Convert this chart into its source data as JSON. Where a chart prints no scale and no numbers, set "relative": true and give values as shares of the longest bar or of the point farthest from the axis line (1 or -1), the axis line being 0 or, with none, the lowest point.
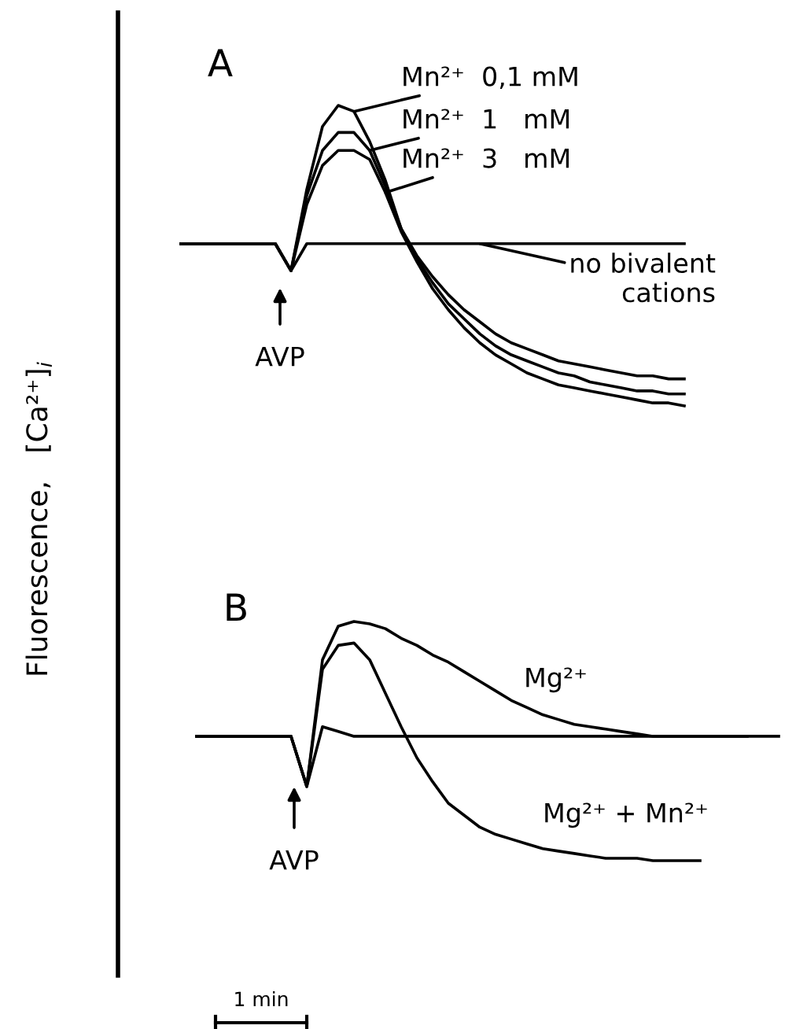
{
  "chart_data": [
    {
      "type": "line",
      "title": "A",
      "ylabel": "Fluorescence,   [Ca²⁺]$_{i}$",
      "relative": true,
      "tick_labels": false,
      "categories": [
        null,
        null,
        null,
        null,
        null,
        null,
        null,
        null,
        null,
        null,
        null,
        null,
        null,
        null,
        null,
        null,
        null,
        null,
        null,
        null,
        null,
        null,
        null,
        null,
        null,
        null,
        null,
        null,
        null,
        null,
        null,
        null,
        null
      ],
      "series": [
        {
          "name": "Mn²⁺  0,1 mM",
          "color": "#000000",
          "values": [
            0.54,
            0.54,
            0.54,
            0.54,
            0.54,
            0.54,
            0.54,
            0.45,
            0.72,
            0.93,
            1.0,
            0.98,
            0.88,
            0.75,
            0.59,
            0.5,
            0.43,
            0.37,
            0.32,
            0.28,
            0.24,
            0.21,
            0.19,
            0.17,
            0.15,
            0.14,
            0.13,
            0.12,
            0.11,
            0.1,
            0.1,
            0.09,
            0.09
          ]
        },
        {
          "name": "Mn²⁺  1   mM",
          "color": "#000000",
          "values": [
            0.54,
            0.54,
            0.54,
            0.54,
            0.54,
            0.54,
            0.54,
            0.45,
            0.7,
            0.85,
            0.91,
            0.91,
            0.85,
            0.73,
            0.59,
            0.49,
            0.41,
            0.34,
            0.29,
            0.24,
            0.2,
            0.17,
            0.15,
            0.13,
            0.11,
            0.1,
            0.08,
            0.07,
            0.06,
            0.05,
            0.05,
            0.04,
            0.04
          ]
        },
        {
          "name": "Mn²⁺  3   mM",
          "color": "#000000",
          "values": [
            0.54,
            0.54,
            0.54,
            0.54,
            0.54,
            0.54,
            0.54,
            0.45,
            0.67,
            0.8,
            0.85,
            0.85,
            0.82,
            0.71,
            0.58,
            0.48,
            0.39,
            0.32,
            0.26,
            0.21,
            0.17,
            0.14,
            0.11,
            0.09,
            0.07,
            0.06,
            0.05,
            0.04,
            0.03,
            0.02,
            0.01,
            0.01,
            0.0
          ]
        },
        {
          "name": "no bivalent cations",
          "color": "#000000",
          "values": [
            0.54,
            0.54,
            0.54,
            0.54,
            0.54,
            0.54,
            0.54,
            0.45,
            0.54,
            0.54,
            0.54,
            0.54,
            0.54,
            0.54,
            0.54,
            0.54,
            0.54,
            0.54,
            0.54,
            0.54,
            0.54,
            0.54,
            0.54,
            0.54,
            0.54,
            0.54,
            0.54,
            0.54,
            0.54,
            0.54,
            0.54,
            0.54,
            0.54
          ]
        }
      ],
      "annotations": [
        "AVP"
      ]
    },
    {
      "type": "line",
      "title": "B",
      "relative": true,
      "tick_labels": false,
      "categories": [
        null,
        null,
        null,
        null,
        null,
        null,
        null,
        null,
        null,
        null,
        null,
        null,
        null,
        null,
        null,
        null,
        null,
        null,
        null,
        null,
        null,
        null,
        null,
        null,
        null,
        null,
        null,
        null,
        null,
        null,
        null,
        null,
        null,
        null,
        null,
        null,
        null,
        null
      ],
      "series": [
        {
          "name": "Mg²⁺",
          "color": "#000000",
          "values": [
            0.52,
            0.52,
            0.52,
            0.52,
            0.52,
            0.52,
            0.52,
            0.31,
            0.84,
            0.98,
            1.0,
            0.99,
            0.97,
            0.93,
            0.9,
            0.86,
            0.83,
            0.79,
            0.75,
            0.71,
            0.67,
            0.64,
            0.61,
            0.59,
            0.57,
            0.56,
            0.55,
            0.54,
            0.53,
            0.52,
            0.52,
            0.52,
            0.52,
            0.52,
            0.52,
            0.52,
            0.52,
            0.52
          ]
        },
        {
          "name": "Mg²⁺ + Mn²⁺",
          "color": "#000000",
          "values": [
            0.52,
            0.52,
            0.52,
            0.52,
            0.52,
            0.52,
            0.52,
            0.31,
            0.8,
            0.9,
            0.91,
            0.84,
            0.7,
            0.56,
            0.43,
            0.33,
            0.24,
            0.19,
            0.14,
            0.11,
            0.09,
            0.07,
            0.05,
            0.04,
            0.03,
            0.02,
            0.01,
            0.01,
            0.01,
            0.0,
            0.0,
            0.0,
            0.0,
            null,
            null,
            null,
            null,
            null
          ]
        },
        {
          "color": "#000000",
          "values": [
            0.52,
            0.52,
            0.52,
            0.52,
            0.52,
            0.52,
            0.52,
            0.31,
            0.56,
            0.54,
            0.52,
            0.52,
            0.52,
            0.52,
            0.52,
            0.52,
            0.52,
            0.52,
            0.52,
            0.52,
            0.52,
            0.52,
            0.52,
            0.52,
            0.52,
            0.52,
            0.52,
            0.52,
            0.52,
            0.52,
            0.52,
            0.52,
            0.52,
            0.52,
            0.52,
            0.52,
            null,
            null
          ]
        }
      ],
      "annotations": [
        "AVP",
        "1 min"
      ]
    }
  ]
}
